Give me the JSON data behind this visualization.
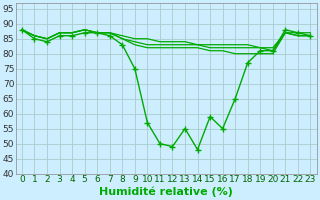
{
  "xlabel": "Humidité relative (%)",
  "bg_color": "#cceeff",
  "grid_color": "#aacccc",
  "line_color": "#00aa00",
  "xlim": [
    -0.5,
    23.5
  ],
  "ylim": [
    40,
    97
  ],
  "xticks": [
    0,
    1,
    2,
    3,
    4,
    5,
    6,
    7,
    8,
    9,
    10,
    11,
    12,
    13,
    14,
    15,
    16,
    17,
    18,
    19,
    20,
    21,
    22,
    23
  ],
  "yticks": [
    40,
    45,
    50,
    55,
    60,
    65,
    70,
    75,
    80,
    85,
    90,
    95
  ],
  "main_series": [
    88,
    85,
    84,
    86,
    86,
    87,
    87,
    86,
    83,
    75,
    57,
    50,
    49,
    55,
    48,
    59,
    55,
    65,
    77,
    81,
    81,
    88,
    87,
    86
  ],
  "flat_series": [
    [
      88,
      86,
      85,
      87,
      87,
      88,
      87,
      87,
      86,
      85,
      85,
      84,
      84,
      84,
      83,
      83,
      83,
      83,
      83,
      82,
      82,
      87,
      87,
      87
    ],
    [
      88,
      86,
      85,
      87,
      87,
      88,
      87,
      87,
      85,
      84,
      83,
      83,
      83,
      83,
      83,
      82,
      82,
      82,
      82,
      82,
      81,
      87,
      86,
      86
    ],
    [
      88,
      86,
      85,
      87,
      87,
      88,
      87,
      87,
      85,
      83,
      82,
      82,
      82,
      82,
      82,
      81,
      81,
      80,
      80,
      80,
      80,
      87,
      86,
      86
    ]
  ],
  "xlabel_fontsize": 8,
  "tick_fontsize": 6.5
}
